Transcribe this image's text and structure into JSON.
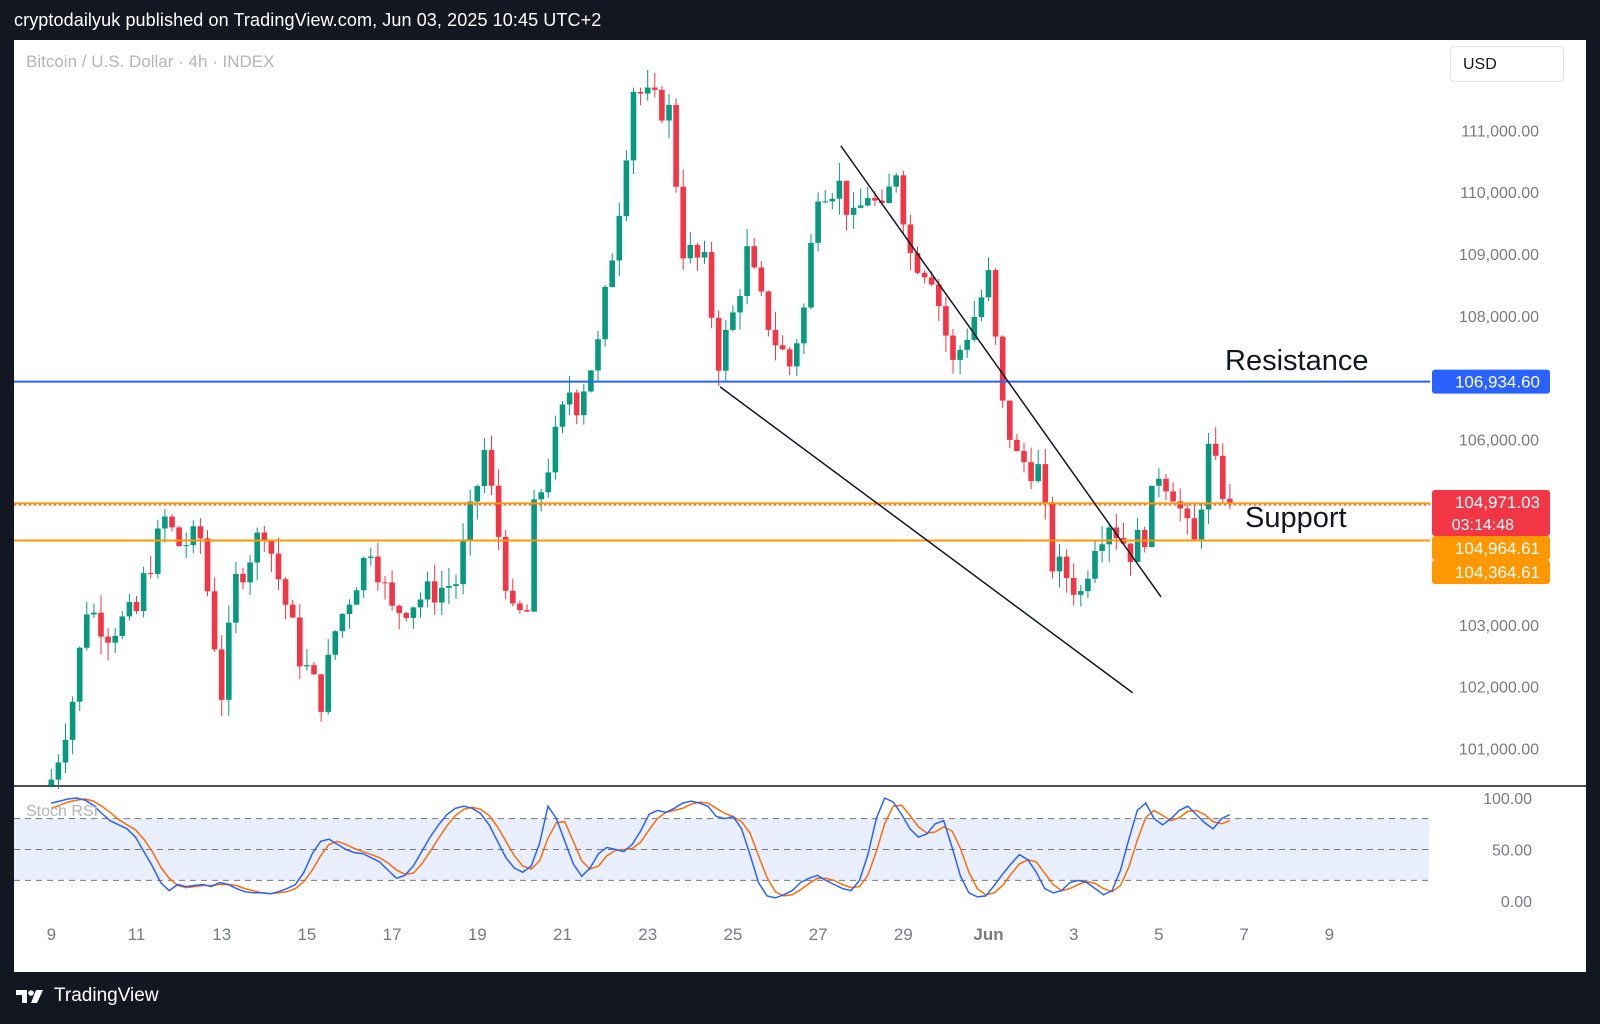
{
  "header": {
    "published_by": "cryptodailyuk published on TradingView.com, Jun 03, 2025 10:45 UTC+2"
  },
  "chart_header": {
    "symbol_text": "Bitcoin / U.S. Dollar · 4h · INDEX",
    "currency": "USD"
  },
  "footer": {
    "brand": "TradingView"
  },
  "annotations": {
    "resistance_label": "Resistance",
    "support_label": "Support"
  },
  "price_tags": [
    {
      "text": "106,934.60",
      "price": 106934.6,
      "color": "#2962ff"
    },
    {
      "text": "104,971.03",
      "sub": "03:14:48",
      "price": 104971.03,
      "color": "#f23645"
    },
    {
      "text": "104,964.61",
      "price": 104964.61,
      "color": "#ff9800"
    },
    {
      "text": "104,364.61",
      "price": 104364.61,
      "color": "#ff9800"
    }
  ],
  "indicator": {
    "name": "Stoch RSI"
  },
  "colors": {
    "up": "#089981",
    "down": "#f23645",
    "resistance": "#2962ff",
    "support": "#ff9800",
    "stoch_k": "#2962ff",
    "stoch_d": "#ff6d00"
  },
  "chart_data": {
    "type": "candlestick",
    "title": "Bitcoin / U.S. Dollar · 4h · INDEX",
    "timeframe": "4h",
    "y_axis": {
      "ticks": [
        101000,
        102000,
        103000,
        104000,
        105000,
        106000,
        107000,
        108000,
        109000,
        110000,
        111000
      ],
      "tick_labels": [
        "101,000.00",
        "102,000.00",
        "103,000.00",
        "",
        "",
        "106,000.00",
        "",
        "108,000.00",
        "109,000.00",
        "110,000.00",
        "111,000.00"
      ],
      "range": [
        100400,
        111900
      ]
    },
    "x_axis": {
      "labels": [
        "9",
        "11",
        "13",
        "15",
        "17",
        "19",
        "21",
        "23",
        "25",
        "27",
        "29",
        "Jun",
        "3",
        "5",
        "7",
        "9"
      ],
      "label_index": [
        0,
        12,
        24,
        36,
        48,
        60,
        72,
        84,
        96,
        108,
        120,
        132,
        144,
        156,
        168,
        180
      ]
    },
    "levels": {
      "resistance": 106934.6,
      "support_upper": 104964.61,
      "support_lower": 104364.61
    },
    "trendlines": [
      {
        "from": {
          "i": 111.2,
          "price": 110750
        },
        "to": {
          "i": 156.3,
          "price": 103450
        }
      },
      {
        "from": {
          "i": 94.2,
          "price": 106850
        },
        "to": {
          "i": 152.3,
          "price": 101900
        }
      }
    ],
    "candles_summary": "8 May 00:00 (4h bars) through Jun 3 08:00; swing high ~111,900 near May 22, low ~100,500 at start, last close ~104,971",
    "candles": [],
    "stoch_rsi": {
      "range": [
        0,
        100
      ],
      "ticks": [
        0,
        50,
        100
      ],
      "bands": [
        20,
        50,
        80
      ],
      "k": [
        95,
        97,
        99,
        100,
        98,
        93,
        85,
        78,
        74,
        70,
        62,
        48,
        34,
        18,
        10,
        16,
        14,
        15,
        16,
        14,
        18,
        16,
        12,
        9,
        8,
        8,
        7,
        9,
        12,
        16,
        28,
        46,
        58,
        60,
        55,
        50,
        47,
        46,
        42,
        38,
        30,
        22,
        25,
        34,
        48,
        62,
        74,
        84,
        90,
        92,
        90,
        85,
        74,
        58,
        42,
        32,
        28,
        34,
        56,
        92,
        80,
        58,
        36,
        24,
        32,
        46,
        52,
        50,
        48,
        55,
        68,
        84,
        88,
        86,
        90,
        95,
        97,
        95,
        92,
        82,
        80,
        82,
        70,
        45,
        18,
        5,
        3,
        6,
        10,
        18,
        22,
        25,
        20,
        16,
        12,
        10,
        20,
        45,
        80,
        100,
        96,
        84,
        70,
        62,
        65,
        75,
        78,
        52,
        24,
        8,
        4,
        5,
        15,
        26,
        36,
        45,
        40,
        28,
        12,
        8,
        10,
        18,
        20,
        18,
        12,
        6,
        10,
        30,
        60,
        88,
        95,
        80,
        74,
        80,
        88,
        92,
        84,
        76,
        70,
        80,
        84
      ],
      "d": [
        90,
        93,
        96,
        98,
        99,
        97,
        92,
        86,
        79,
        74,
        69,
        60,
        48,
        33,
        22,
        15,
        13,
        14,
        15,
        15,
        16,
        16,
        15,
        12,
        10,
        8,
        7,
        8,
        9,
        12,
        19,
        30,
        44,
        55,
        58,
        55,
        51,
        48,
        45,
        42,
        37,
        30,
        26,
        27,
        36,
        48,
        61,
        73,
        83,
        89,
        91,
        89,
        83,
        72,
        58,
        44,
        34,
        31,
        39,
        61,
        76,
        77,
        58,
        39,
        31,
        34,
        44,
        49,
        50,
        51,
        57,
        69,
        80,
        86,
        88,
        90,
        94,
        96,
        95,
        90,
        85,
        82,
        77,
        66,
        44,
        23,
        9,
        5,
        6,
        11,
        17,
        22,
        22,
        20,
        16,
        13,
        14,
        25,
        48,
        75,
        92,
        93,
        83,
        72,
        66,
        67,
        72,
        68,
        51,
        28,
        12,
        6,
        8,
        15,
        26,
        36,
        40,
        38,
        27,
        16,
        10,
        12,
        16,
        19,
        17,
        12,
        9,
        15,
        33,
        59,
        81,
        88,
        83,
        78,
        81,
        87,
        88,
        84,
        77,
        75,
        78
      ]
    }
  }
}
